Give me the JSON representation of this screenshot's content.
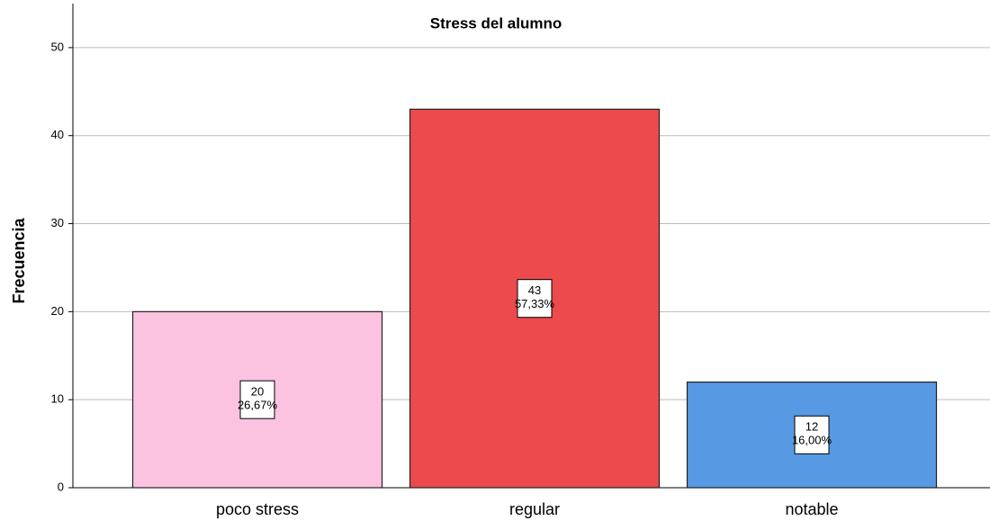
{
  "chart_data": {
    "type": "bar",
    "title": "Stress del alumno",
    "ylabel": "Frecuencia",
    "categories": [
      "poco stress",
      "regular",
      "notable"
    ],
    "values": [
      20,
      43,
      12
    ],
    "percents": [
      26.67,
      57.33,
      16.0
    ],
    "percent_labels": [
      "26,67%",
      "57,33%",
      "16,00%"
    ],
    "colors": [
      "#fcc3e0",
      "#ec4a4c",
      "#5899e3"
    ],
    "ylim": [
      0,
      55
    ],
    "yticks": [
      0,
      10,
      20,
      30,
      40,
      50
    ],
    "grid": true
  }
}
